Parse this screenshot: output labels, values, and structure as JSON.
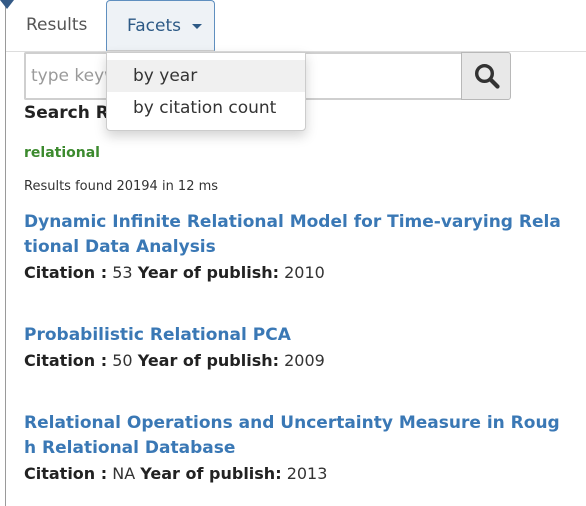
{
  "tabs": [
    {
      "label": "Results"
    },
    {
      "label": "Facets"
    }
  ],
  "dropdown": {
    "items": [
      "by year",
      "by citation count"
    ]
  },
  "search": {
    "placeholder": "type keywords",
    "button_icon": "magnifier-icon"
  },
  "section_heading": "Search Results",
  "query_term": "relational",
  "results_info": "Results found 20194 in 12 ms",
  "meta_labels": {
    "citation": "Citation :",
    "year": "Year of publish:"
  },
  "results": [
    {
      "title": "Dynamic Infinite Relational Model for Time-varying Relational Data Analysis",
      "citation": "53",
      "year": "2010"
    },
    {
      "title": "Probabilistic Relational PCA",
      "citation": "50",
      "year": "2009"
    },
    {
      "title": "Relational Operations and Uncertainty Measure in Rough Relational Database",
      "citation": "NA",
      "year": "2013"
    }
  ],
  "colors": {
    "link": "#3a78b5",
    "query": "#3c8a2e",
    "tab_active_border": "#5f8fbf"
  }
}
